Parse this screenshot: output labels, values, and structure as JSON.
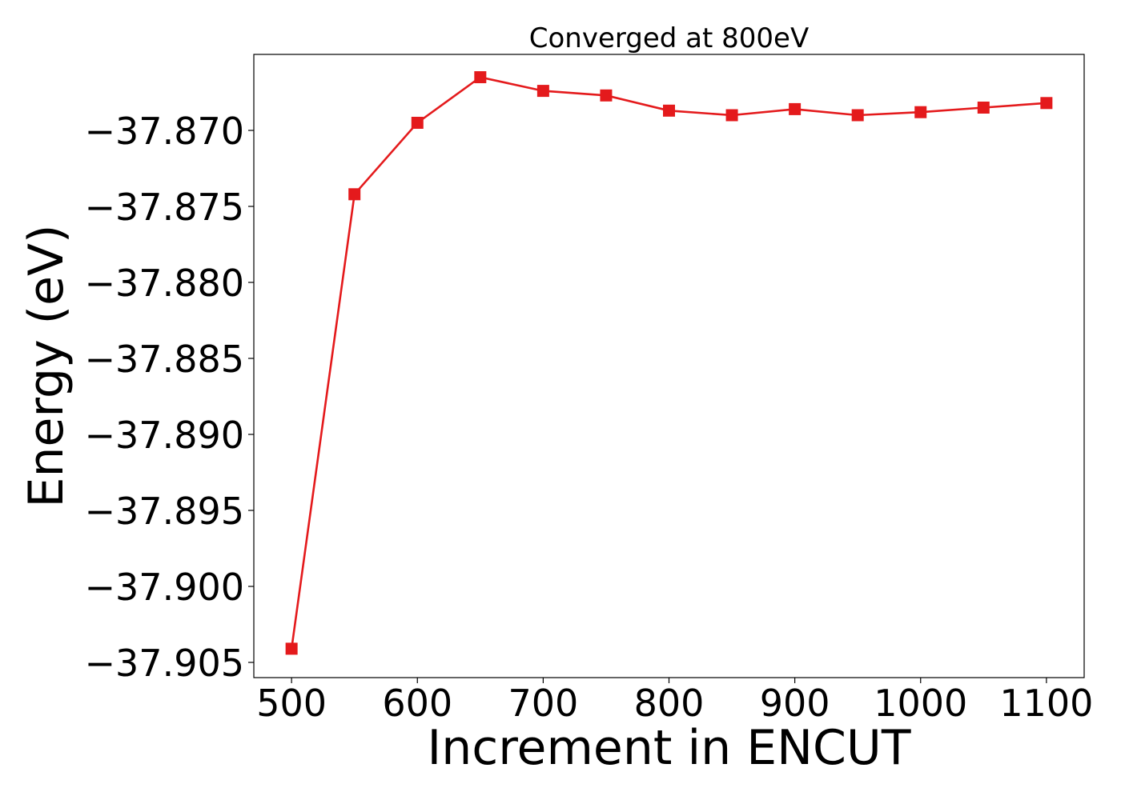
{
  "chart_data": {
    "type": "line",
    "title": "Converged at 800eV",
    "xlabel": "Increment in ENCUT",
    "ylabel": "Energy (eV)",
    "xlim": [
      470,
      1130
    ],
    "ylim": [
      -37.906,
      -37.865
    ],
    "xticks": [
      500,
      600,
      700,
      800,
      900,
      1000,
      1100
    ],
    "yticks": [
      -37.905,
      -37.9,
      -37.895,
      -37.89,
      -37.885,
      -37.88,
      -37.875,
      -37.87
    ],
    "grid": false,
    "series": [
      {
        "marker": "square",
        "color": "#e41a1c",
        "x": [
          500,
          550,
          600,
          650,
          700,
          750,
          800,
          850,
          900,
          950,
          1000,
          1050,
          1100
        ],
        "y": [
          -37.9041,
          -37.8742,
          -37.8695,
          -37.8665,
          -37.8674,
          -37.8677,
          -37.8687,
          -37.869,
          -37.8686,
          -37.869,
          -37.8688,
          -37.8685,
          -37.8682
        ]
      }
    ]
  }
}
